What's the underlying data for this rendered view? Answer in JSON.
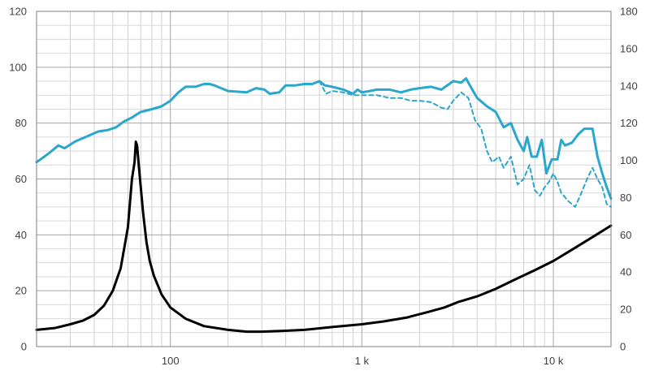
{
  "chart_data": {
    "type": "line",
    "title": "",
    "xlabel": "",
    "ylabel": "",
    "x_scale": "log",
    "xlim": [
      20,
      20000
    ],
    "ylim_left": [
      0,
      120
    ],
    "ylim_right": [
      0,
      180
    ],
    "grid": true,
    "x_ticks": [
      {
        "value": 100,
        "label": "100"
      },
      {
        "value": 1000,
        "label": "1 k"
      },
      {
        "value": 10000,
        "label": "10 k"
      }
    ],
    "y_ticks_left": [
      "0",
      "20",
      "40",
      "60",
      "80",
      "100",
      "120"
    ],
    "y_ticks_right": [
      "0",
      "20",
      "40",
      "60",
      "80",
      "100",
      "120",
      "140",
      "160",
      "180"
    ],
    "series": [
      {
        "axis": "left",
        "style": "solid",
        "color": "#2aa7cc",
        "points": [
          [
            20,
            66
          ],
          [
            23,
            69
          ],
          [
            26,
            72
          ],
          [
            28,
            71
          ],
          [
            32,
            73.5
          ],
          [
            36,
            75
          ],
          [
            42,
            77
          ],
          [
            47,
            77.5
          ],
          [
            52,
            78.5
          ],
          [
            57,
            80.5
          ],
          [
            63,
            82
          ],
          [
            70,
            84
          ],
          [
            80,
            85
          ],
          [
            90,
            86
          ],
          [
            100,
            88
          ],
          [
            110,
            91
          ],
          [
            120,
            93
          ],
          [
            135,
            93
          ],
          [
            150,
            94
          ],
          [
            160,
            94
          ],
          [
            170,
            93.5
          ],
          [
            200,
            91.5
          ],
          [
            250,
            91
          ],
          [
            280,
            92.5
          ],
          [
            310,
            92
          ],
          [
            330,
            90.5
          ],
          [
            370,
            91
          ],
          [
            400,
            93.5
          ],
          [
            450,
            93.5
          ],
          [
            500,
            94
          ],
          [
            550,
            94
          ],
          [
            600,
            95
          ],
          [
            640,
            93.5
          ],
          [
            700,
            93
          ],
          [
            800,
            92
          ],
          [
            900,
            90.5
          ],
          [
            950,
            92
          ],
          [
            1000,
            91
          ],
          [
            1100,
            91.5
          ],
          [
            1200,
            92
          ],
          [
            1400,
            92
          ],
          [
            1600,
            91
          ],
          [
            1800,
            92
          ],
          [
            2000,
            92.5
          ],
          [
            2300,
            93
          ],
          [
            2600,
            92
          ],
          [
            3000,
            95
          ],
          [
            3300,
            94.5
          ],
          [
            3500,
            96
          ],
          [
            3700,
            93
          ],
          [
            4000,
            89
          ],
          [
            4500,
            86
          ],
          [
            5000,
            84
          ],
          [
            5500,
            78.5
          ],
          [
            6000,
            80
          ],
          [
            6500,
            74
          ],
          [
            7000,
            70
          ],
          [
            7300,
            75
          ],
          [
            7700,
            68
          ],
          [
            8200,
            68
          ],
          [
            8700,
            74
          ],
          [
            9200,
            62
          ],
          [
            9800,
            67
          ],
          [
            10500,
            67
          ],
          [
            11000,
            74
          ],
          [
            11500,
            72
          ],
          [
            12500,
            73
          ],
          [
            13500,
            76
          ],
          [
            14500,
            78
          ],
          [
            16000,
            78
          ],
          [
            17000,
            68
          ],
          [
            18000,
            62
          ],
          [
            19000,
            57
          ],
          [
            20000,
            53
          ]
        ]
      },
      {
        "axis": "left",
        "style": "dashed",
        "color": "#2aa7cc",
        "points": [
          [
            600,
            95
          ],
          [
            650,
            90.5
          ],
          [
            700,
            91.5
          ],
          [
            800,
            91
          ],
          [
            900,
            90
          ],
          [
            1000,
            90
          ],
          [
            1200,
            90
          ],
          [
            1400,
            89
          ],
          [
            1600,
            89
          ],
          [
            1800,
            88
          ],
          [
            2000,
            88
          ],
          [
            2300,
            87.5
          ],
          [
            2600,
            85.5
          ],
          [
            2800,
            85
          ],
          [
            3000,
            88
          ],
          [
            3300,
            91
          ],
          [
            3600,
            89
          ],
          [
            3900,
            81
          ],
          [
            4200,
            78
          ],
          [
            4500,
            70
          ],
          [
            4800,
            66
          ],
          [
            5200,
            68
          ],
          [
            5500,
            64
          ],
          [
            6000,
            68
          ],
          [
            6500,
            58
          ],
          [
            7000,
            60
          ],
          [
            7500,
            65
          ],
          [
            8000,
            56
          ],
          [
            8500,
            54
          ],
          [
            9000,
            57
          ],
          [
            9500,
            59
          ],
          [
            10000,
            62
          ],
          [
            10500,
            59
          ],
          [
            11000,
            55
          ],
          [
            12000,
            52
          ],
          [
            13000,
            50
          ],
          [
            14000,
            55
          ],
          [
            15000,
            60
          ],
          [
            16000,
            64
          ],
          [
            17000,
            60
          ],
          [
            18000,
            57
          ],
          [
            19000,
            51
          ],
          [
            20000,
            50
          ]
        ]
      },
      {
        "axis": "right",
        "style": "solid",
        "color": "#000000",
        "points": [
          [
            20,
            9
          ],
          [
            25,
            10
          ],
          [
            30,
            12
          ],
          [
            35,
            14
          ],
          [
            40,
            17
          ],
          [
            45,
            22
          ],
          [
            50,
            30
          ],
          [
            55,
            42
          ],
          [
            60,
            64
          ],
          [
            63,
            90
          ],
          [
            65,
            99
          ],
          [
            66,
            110
          ],
          [
            67,
            108
          ],
          [
            69,
            93
          ],
          [
            72,
            72
          ],
          [
            75,
            56
          ],
          [
            78,
            46
          ],
          [
            82,
            38
          ],
          [
            90,
            28
          ],
          [
            100,
            21
          ],
          [
            120,
            15
          ],
          [
            150,
            11
          ],
          [
            200,
            9
          ],
          [
            250,
            8
          ],
          [
            300,
            8
          ],
          [
            400,
            8.5
          ],
          [
            500,
            9
          ],
          [
            700,
            10.5
          ],
          [
            1000,
            12
          ],
          [
            1300,
            13.5
          ],
          [
            1700,
            15.5
          ],
          [
            2200,
            18.5
          ],
          [
            2700,
            21
          ],
          [
            3200,
            24
          ],
          [
            4000,
            27
          ],
          [
            5000,
            31
          ],
          [
            6300,
            36
          ],
          [
            8000,
            41
          ],
          [
            10000,
            46
          ],
          [
            12500,
            52
          ],
          [
            15000,
            57
          ],
          [
            18000,
            62
          ],
          [
            20000,
            65
          ]
        ]
      }
    ]
  }
}
